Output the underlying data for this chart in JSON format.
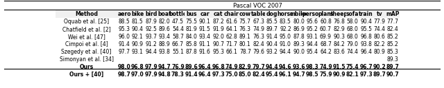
{
  "title": "Pascal VOC 2007",
  "col_header_icons": [
    "✈",
    "🚲",
    "🐦",
    "⛵",
    "🕯",
    "🚌",
    "🚗",
    "🐎",
    "🪑",
    "🐄",
    "🚂",
    "🐕",
    "🏇",
    "🏍",
    "🧍",
    "🌿",
    "🐑",
    "🛋",
    "🚂",
    "📺",
    "mAP"
  ],
  "col_labels": [
    "aero",
    "bike",
    "bird",
    "boat",
    "bottle",
    "bus",
    "car",
    "cat",
    "chair",
    "cow",
    "table",
    "dog",
    "horse",
    "mbike",
    "person",
    "plant",
    "sheep",
    "sofa",
    "train",
    "tv",
    "mAP"
  ],
  "methods": [
    "Oquab et al. [25]",
    "Chatfield et al. [2]",
    "Wei et al. [47]",
    "Cimpoi et al. [4]",
    "Szegedy et al. [40]",
    "Simonyan et al. [34]",
    "Ours",
    "Ours + [40]"
  ],
  "data": [
    [
      88.5,
      81.5,
      87.9,
      82.0,
      47.5,
      75.5,
      90.1,
      87.2,
      61.6,
      75.7,
      67.3,
      85.5,
      83.5,
      80.0,
      95.6,
      60.8,
      76.8,
      58.0,
      90.4,
      77.9,
      77.7
    ],
    [
      95.3,
      90.4,
      92.5,
      89.6,
      54.4,
      81.9,
      91.5,
      91.9,
      64.1,
      76.3,
      74.9,
      89.7,
      92.2,
      86.9,
      95.2,
      60.7,
      82.9,
      68.0,
      95.5,
      74.4,
      82.4
    ],
    [
      96.0,
      92.1,
      93.7,
      93.4,
      58.7,
      84.0,
      93.4,
      92.0,
      62.8,
      89.1,
      76.3,
      91.4,
      95.0,
      87.8,
      93.1,
      69.9,
      90.3,
      68.0,
      96.8,
      80.6,
      85.2
    ],
    [
      91.4,
      90.9,
      91.2,
      88.9,
      66.7,
      85.8,
      91.1,
      90.7,
      71.7,
      80.1,
      82.4,
      90.4,
      91.0,
      89.3,
      94.4,
      68.7,
      84.2,
      79.0,
      93.8,
      82.2,
      85.2
    ],
    [
      97.7,
      93.1,
      94.4,
      93.8,
      55.1,
      87.8,
      91.6,
      95.3,
      66.1,
      78.7,
      79.6,
      93.2,
      94.4,
      90.0,
      95.4,
      64.2,
      83.6,
      74.4,
      96.4,
      80.9,
      85.3
    ],
    [
      null,
      null,
      null,
      null,
      null,
      null,
      null,
      null,
      null,
      null,
      null,
      null,
      null,
      null,
      null,
      null,
      null,
      null,
      null,
      null,
      89.3
    ],
    [
      98.0,
      96.8,
      97.9,
      94.7,
      76.9,
      89.6,
      96.4,
      96.8,
      74.9,
      82.9,
      79.7,
      94.4,
      94.6,
      93.6,
      98.3,
      74.9,
      91.5,
      75.4,
      96.7,
      90.2,
      89.7
    ],
    [
      98.7,
      97.0,
      97.9,
      94.8,
      78.3,
      91.4,
      96.4,
      97.3,
      75.0,
      85.0,
      82.4,
      95.4,
      96.1,
      94.7,
      98.5,
      75.9,
      90.9,
      82.1,
      97.3,
      89.7,
      90.7
    ]
  ],
  "bold_rows": [
    6,
    7
  ],
  "underline_map_rows": [
    6,
    7
  ],
  "separator_after": [
    0,
    5
  ],
  "background_color": "#ffffff",
  "font_size": 5.5,
  "header_font_size": 5.5
}
